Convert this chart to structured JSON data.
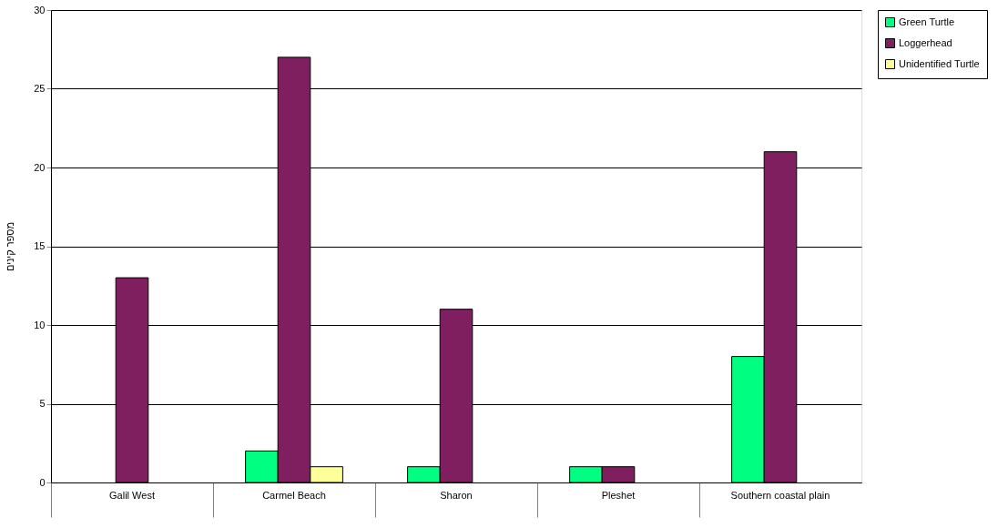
{
  "chart_data": {
    "type": "bar",
    "ylabel": "מספר קינים",
    "categories": [
      "Galil West",
      "Carmel Beach",
      "Sharon",
      "Pleshet",
      "Southern coastal plain"
    ],
    "series": [
      {
        "name": "Green Turtle",
        "color": "#00ff80",
        "values": [
          null,
          2,
          1,
          1,
          8
        ]
      },
      {
        "name": "Loggerhead",
        "color": "#7f1f5f",
        "values": [
          13,
          27,
          11,
          1,
          21
        ]
      },
      {
        "name": "Unidentified Turtle",
        "color": "#ffff99",
        "values": [
          null,
          1,
          null,
          null,
          null
        ]
      }
    ],
    "ylim": [
      0,
      30
    ],
    "yticks": [
      0,
      5,
      10,
      15,
      20,
      25,
      30
    ],
    "grid": "y",
    "legend": "right"
  }
}
